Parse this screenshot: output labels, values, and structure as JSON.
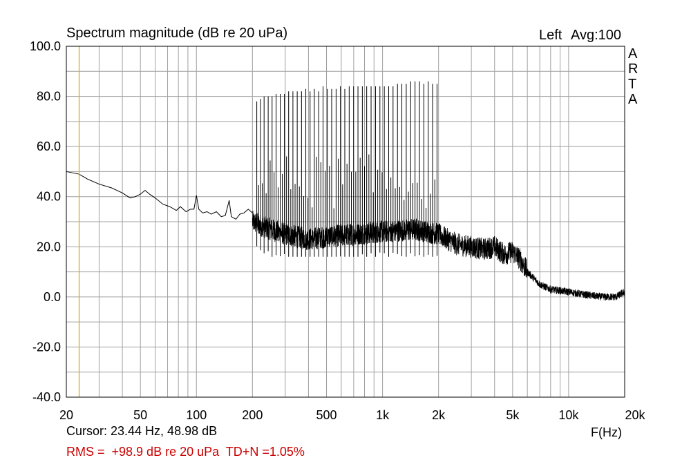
{
  "chart_data": {
    "type": "line",
    "title": "Spectrum magnitude (dB re 20 uPa)",
    "channel_label": "Left",
    "avg_label": "Avg:100",
    "watermark": [
      "A",
      "R",
      "T",
      "A"
    ],
    "xlabel": "F(Hz)",
    "ylabel": "",
    "x_scale": "log",
    "xlim": [
      20,
      20000
    ],
    "ylim": [
      -40,
      100
    ],
    "grid": true,
    "x_tick_values": [
      20,
      50,
      100,
      200,
      500,
      1000,
      2000,
      5000,
      10000,
      20000
    ],
    "x_tick_labels": [
      "20",
      "50",
      "100",
      "200",
      "500",
      "1k",
      "2k",
      "5k",
      "10k",
      "20k"
    ],
    "y_tick_values": [
      100,
      80,
      60,
      40,
      20,
      0,
      -20,
      -40
    ],
    "y_tick_labels": [
      "100.0",
      "80.0",
      "60.0",
      "40.0",
      "20.0",
      "0.0",
      "-20.0",
      "-40.0"
    ],
    "cursor": {
      "x": 23.44,
      "y": 48.98,
      "color": "#d4b400"
    },
    "cursor_text": "Cursor: 23.44 Hz, 48.98 dB",
    "rms_text": "RMS =  +98.9 dB re 20 uPa  TD+N =1.05%",
    "colors": {
      "trace": "#000000",
      "grid": "#a0a0a0",
      "cursor": "#d4b400",
      "rms_text": "#cc0000"
    },
    "series": [
      {
        "values": [
          [
            20,
            50
          ],
          [
            23.4,
            49
          ],
          [
            26,
            47
          ],
          [
            30,
            45
          ],
          [
            35,
            43.5
          ],
          [
            40,
            41.5
          ],
          [
            44,
            39.5
          ],
          [
            47,
            40
          ],
          [
            50,
            41
          ],
          [
            53,
            42.5
          ],
          [
            56,
            41
          ],
          [
            60,
            39.5
          ],
          [
            66,
            37
          ],
          [
            72,
            36
          ],
          [
            78,
            34.5
          ],
          [
            82,
            36
          ],
          [
            88,
            34
          ],
          [
            93,
            35
          ],
          [
            97,
            35
          ],
          [
            100,
            40.5
          ],
          [
            103,
            35
          ],
          [
            108,
            33.5
          ],
          [
            114,
            34
          ],
          [
            120,
            33
          ],
          [
            128,
            34
          ],
          [
            136,
            32
          ],
          [
            143,
            32.5
          ],
          [
            150,
            38.5
          ],
          [
            154,
            32
          ],
          [
            163,
            31
          ],
          [
            171,
            33
          ],
          [
            180,
            33.5
          ],
          [
            190,
            35
          ],
          [
            200,
            33.5
          ]
        ],
        "tone_peaks": [
          [
            211,
            78
          ],
          [
            221,
            79
          ],
          [
            231,
            80
          ],
          [
            243,
            80
          ],
          [
            255,
            80
          ],
          [
            268,
            81
          ],
          [
            282,
            81
          ],
          [
            297,
            81
          ],
          [
            313,
            82
          ],
          [
            330,
            82
          ],
          [
            348,
            82
          ],
          [
            367,
            82
          ],
          [
            387,
            83
          ],
          [
            408,
            82
          ],
          [
            430,
            83
          ],
          [
            454,
            82
          ],
          [
            479,
            84
          ],
          [
            505,
            83
          ],
          [
            533,
            83
          ],
          [
            563,
            83
          ],
          [
            594,
            84
          ],
          [
            627,
            83
          ],
          [
            662,
            84
          ],
          [
            699,
            84
          ],
          [
            738,
            84
          ],
          [
            779,
            84
          ],
          [
            822,
            84
          ],
          [
            868,
            84
          ],
          [
            917,
            84
          ],
          [
            968,
            84
          ],
          [
            1022,
            84
          ],
          [
            1079,
            84
          ],
          [
            1139,
            84
          ],
          [
            1203,
            85
          ],
          [
            1270,
            85
          ],
          [
            1341,
            85
          ],
          [
            1416,
            86
          ],
          [
            1495,
            86
          ],
          [
            1579,
            86
          ],
          [
            1667,
            85
          ],
          [
            1760,
            86
          ],
          [
            1858,
            85
          ],
          [
            1962,
            85
          ]
        ],
        "distortion_components_ceiling_db": 57,
        "noise_floor": [
          [
            200,
            30
          ],
          [
            250,
            27
          ],
          [
            300,
            25
          ],
          [
            400,
            23
          ],
          [
            500,
            24
          ],
          [
            700,
            25
          ],
          [
            1000,
            26
          ],
          [
            1500,
            27
          ],
          [
            2000,
            25
          ],
          [
            2500,
            21
          ],
          [
            3000,
            20
          ],
          [
            3500,
            19
          ],
          [
            4000,
            20
          ],
          [
            4500,
            17
          ],
          [
            5000,
            18
          ],
          [
            5500,
            15
          ],
          [
            6000,
            10
          ],
          [
            7000,
            5
          ],
          [
            8000,
            3
          ],
          [
            10000,
            2
          ],
          [
            12000,
            1
          ],
          [
            15000,
            0
          ],
          [
            18000,
            0
          ],
          [
            20000,
            2
          ]
        ]
      }
    ]
  }
}
